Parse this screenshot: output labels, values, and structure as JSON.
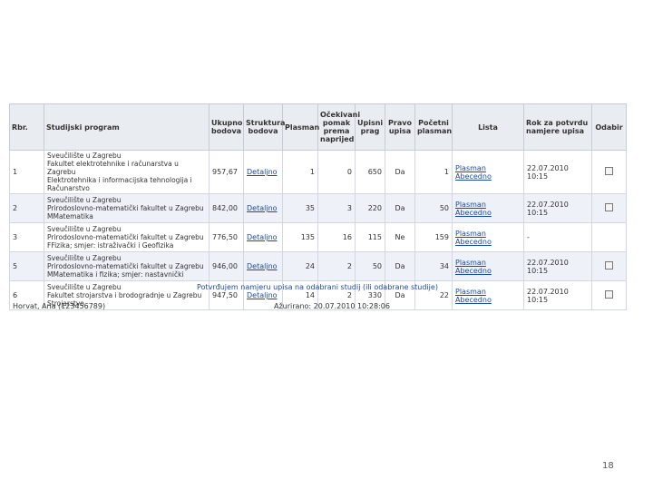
{
  "headers": {
    "rbr": "Rbr.",
    "program": "Studijski program",
    "ukupno": "Ukupno bodova",
    "struktura": "Struktura bodova",
    "plasman": "Plasman",
    "ocekivani": "Očekivani pomak prema naprijed",
    "prag": "Upisni prag",
    "pravo": "Pravo upisa",
    "pocetni": "Početni plasman",
    "lista": "Lista",
    "rok": "Rok za potvrdu namjere upisa",
    "odabir": "Odabir"
  },
  "rows": [
    {
      "rbr": "1",
      "program": "Sveučilište u Zagrebu\nFakultet elektrotehnike i računarstva u Zagrebu\nElektrotehnika i informacijska tehnologija i\nRačunarstvo",
      "ukupno": "957,67",
      "struktura": "Detaljno",
      "plasman": "1",
      "pomak": "0",
      "prag": "650",
      "pravo": "Da",
      "pocetni": "1",
      "lista1": "Plasman",
      "lista2": "Abecedno",
      "rok": "22.07.2010 10:15",
      "checkbox": true
    },
    {
      "rbr": "2",
      "program": "Sveučilište u Zagrebu\nPrirodoslovno-matematički fakultet u Zagrebu\nMMatematika",
      "ukupno": "842,00",
      "struktura": "Detaljno",
      "plasman": "35",
      "pomak": "3",
      "prag": "220",
      "pravo": "Da",
      "pocetni": "50",
      "lista1": "Plasman",
      "lista2": "Abecedno",
      "rok": "22.07.2010 10:15",
      "checkbox": true
    },
    {
      "rbr": "3",
      "program": "Sveučilište u Zagrebu\nPrirodoslovno-matematički fakultet u Zagrebu\nFFizika; smjer: istraživački i Geofizika",
      "ukupno": "776,50",
      "struktura": "Detaljno",
      "plasman": "135",
      "pomak": "16",
      "prag": "115",
      "pravo": "Ne",
      "pocetni": "159",
      "lista1": "Plasman",
      "lista2": "Abecedno",
      "rok": "-",
      "checkbox": false
    },
    {
      "rbr": "5",
      "program": "Sveučilište u Zagrebu\nPrirodoslovno-matematički fakultet u Zagrebu\nMMatematika i fizika; smjer: nastavnički",
      "ukupno": "946,00",
      "struktura": "Detaljno",
      "plasman": "24",
      "pomak": "2",
      "prag": "50",
      "pravo": "Da",
      "pocetni": "34",
      "lista1": "Plasman",
      "lista2": "Abecedno",
      "rok": "22.07.2010 10:15",
      "checkbox": true
    },
    {
      "rbr": "6",
      "program": "Sveučilište u Zagrebu\nFakultet strojarstva i brodogradnje u Zagrebu\nStrojarstvo",
      "ukupno": "947,50",
      "struktura": "Detaljno",
      "plasman": "14",
      "pomak": "2",
      "prag": "330",
      "pravo": "Da",
      "pocetni": "22",
      "lista1": "Plasman",
      "lista2": "Abecedno",
      "rok": "22.07.2010 10:15",
      "checkbox": true
    }
  ],
  "confirm_link": "Potvrđujem namjeru upisa na odabrani studij (ili odabrane studije)",
  "user": "Horvat, Ana (123456789)",
  "updated": "Ažurirano: 20.07.2010 10:28:06",
  "page_number": "18"
}
